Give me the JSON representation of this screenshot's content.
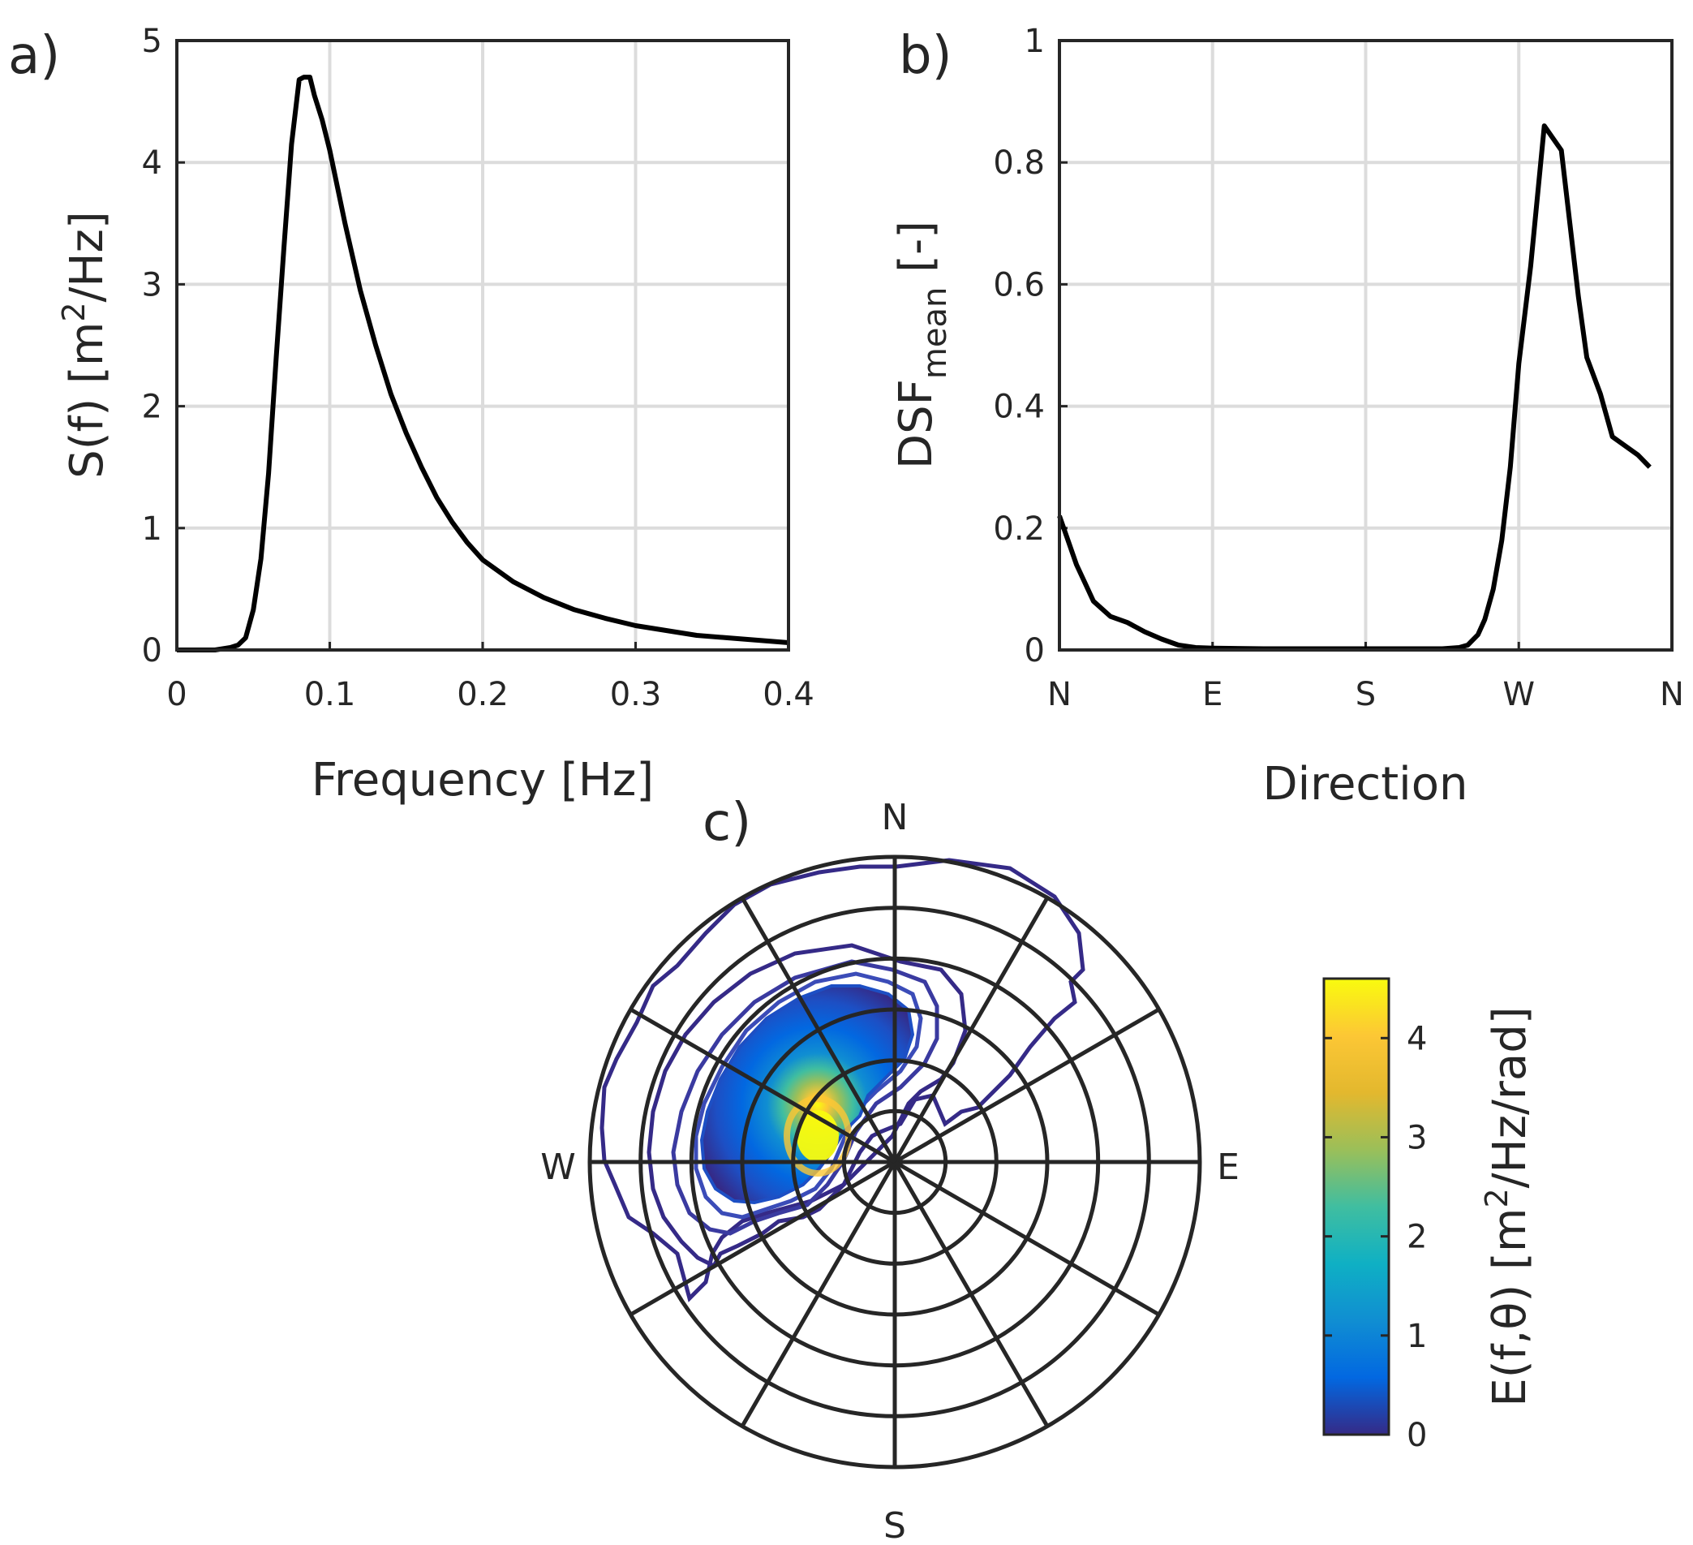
{
  "chart_data": [
    {
      "id": "a",
      "type": "line",
      "panel_label": "a)",
      "xlabel": "Frequency [Hz]",
      "ylabel_parts": [
        "S(f) [m",
        "2",
        "/Hz]"
      ],
      "xlim": [
        0,
        0.4
      ],
      "ylim": [
        0,
        5
      ],
      "xticks": [
        0,
        0.1,
        0.2,
        0.3,
        0.4
      ],
      "xtick_labels": [
        "0",
        "0.1",
        "0.2",
        "0.3",
        "0.4"
      ],
      "yticks": [
        0,
        1,
        2,
        3,
        4,
        5
      ],
      "ytick_labels": [
        "0",
        "1",
        "2",
        "3",
        "4",
        "5"
      ],
      "grid": true,
      "series": [
        {
          "name": "S(f)",
          "color": "#000000",
          "x": [
            0,
            0.025,
            0.035,
            0.04,
            0.045,
            0.05,
            0.055,
            0.06,
            0.065,
            0.07,
            0.075,
            0.08,
            0.083,
            0.087,
            0.09,
            0.095,
            0.1,
            0.105,
            0.11,
            0.12,
            0.13,
            0.14,
            0.15,
            0.16,
            0.17,
            0.18,
            0.19,
            0.2,
            0.22,
            0.24,
            0.26,
            0.28,
            0.3,
            0.32,
            0.34,
            0.36,
            0.38,
            0.4
          ],
          "y": [
            0,
            0,
            0.02,
            0.04,
            0.1,
            0.33,
            0.75,
            1.45,
            2.4,
            3.3,
            4.15,
            4.68,
            4.7,
            4.7,
            4.55,
            4.35,
            4.1,
            3.8,
            3.5,
            2.95,
            2.5,
            2.1,
            1.78,
            1.5,
            1.25,
            1.05,
            0.88,
            0.74,
            0.56,
            0.43,
            0.33,
            0.26,
            0.2,
            0.16,
            0.12,
            0.1,
            0.08,
            0.06
          ]
        }
      ]
    },
    {
      "id": "b",
      "type": "line",
      "panel_label": "b)",
      "xlabel": "Direction",
      "ylabel_parts": [
        "DSF",
        "mean",
        " [-]"
      ],
      "xlim": [
        0,
        360
      ],
      "ylim": [
        0,
        1
      ],
      "xticks": [
        0,
        90,
        180,
        270,
        360
      ],
      "xtick_labels": [
        "N",
        "E",
        "S",
        "W",
        "N"
      ],
      "yticks": [
        0,
        0.2,
        0.4,
        0.6,
        0.8,
        1
      ],
      "ytick_labels": [
        "0",
        "0.2",
        "0.4",
        "0.6",
        "0.8",
        "1"
      ],
      "grid": true,
      "series": [
        {
          "name": "DSF mean",
          "color": "#000000",
          "x": [
            0,
            5,
            10,
            15,
            20,
            30,
            40,
            50,
            60,
            70,
            80,
            90,
            120,
            150,
            180,
            210,
            225,
            235,
            240,
            246,
            250,
            255,
            260,
            265,
            270,
            277,
            285,
            290,
            295,
            300,
            305,
            310,
            318,
            325,
            330,
            340,
            347
          ],
          "y": [
            0.22,
            0.18,
            0.14,
            0.11,
            0.08,
            0.055,
            0.045,
            0.03,
            0.018,
            0.008,
            0.004,
            0.003,
            0.002,
            0.002,
            0.002,
            0.002,
            0.002,
            0.004,
            0.008,
            0.025,
            0.05,
            0.1,
            0.18,
            0.3,
            0.47,
            0.63,
            0.86,
            0.84,
            0.82,
            0.7,
            0.58,
            0.48,
            0.42,
            0.35,
            0.34,
            0.32,
            0.3
          ]
        }
      ]
    },
    {
      "id": "c",
      "type": "heatmap",
      "panel_label": "c)",
      "subtype": "polar contour",
      "compass_labels": {
        "north": "N",
        "east": "E",
        "south": "S",
        "west": "W"
      },
      "rings": 6,
      "spokes_deg": [
        0,
        30,
        60,
        90,
        120,
        150,
        180,
        210,
        240,
        270,
        300,
        330
      ],
      "peak": {
        "value": 4.6,
        "direction": "W (about 280°)",
        "relative_radius": 0.27
      },
      "colorbar": {
        "label_parts": [
          "E(f,θ) [m",
          "2",
          "/Hz/rad]"
        ],
        "ticks": [
          0,
          1,
          2,
          3,
          4
        ],
        "tick_labels": [
          "0",
          "1",
          "2",
          "3",
          "4"
        ],
        "range": [
          0,
          4.6
        ],
        "colors": [
          "#352a87",
          "#0268e1",
          "#108ed2",
          "#0fb0c4",
          "#40bea0",
          "#9bbf59",
          "#e3b82e",
          "#fcc735",
          "#f9fb0e"
        ]
      }
    }
  ]
}
